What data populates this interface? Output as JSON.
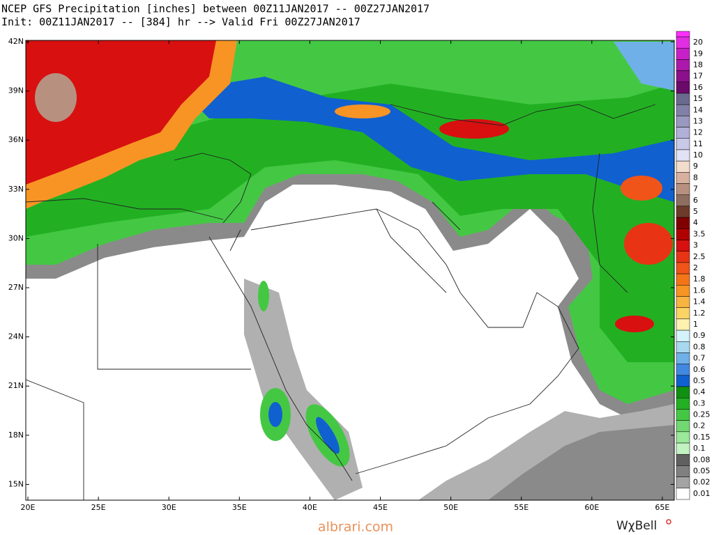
{
  "header": {
    "line1": "NCEP GFS Precipitation [inches] between 00Z11JAN2017 -- 00Z27JAN2017",
    "line2": "Init: 00Z11JAN2017 -- [384] hr --> Valid Fri 00Z27JAN2017"
  },
  "map": {
    "lat_labels": [
      "42N",
      "39N",
      "36N",
      "33N",
      "30N",
      "27N",
      "24N",
      "21N",
      "18N",
      "15N"
    ],
    "lon_labels": [
      "20E",
      "25E",
      "30E",
      "35E",
      "40E",
      "45E",
      "50E",
      "55E",
      "60E",
      "65E"
    ]
  },
  "colorbar": {
    "top_color": "#ff30ff",
    "levels": [
      {
        "label": "20",
        "color": "#e22ee2"
      },
      {
        "label": "19",
        "color": "#c820c8"
      },
      {
        "label": "18",
        "color": "#ac18ac"
      },
      {
        "label": "17",
        "color": "#8c108c"
      },
      {
        "label": "16",
        "color": "#6c0a6c"
      },
      {
        "label": "15",
        "color": "#6a6a8e"
      },
      {
        "label": "14",
        "color": "#8080a8"
      },
      {
        "label": "13",
        "color": "#9898c0"
      },
      {
        "label": "12",
        "color": "#b0b0d8"
      },
      {
        "label": "11",
        "color": "#c8c8e8"
      },
      {
        "label": "10",
        "color": "#e2e2f6"
      },
      {
        "label": "9",
        "color": "#f2dccc"
      },
      {
        "label": "8",
        "color": "#d8b0a0"
      },
      {
        "label": "7",
        "color": "#b89080"
      },
      {
        "label": "6",
        "color": "#8e6e60"
      },
      {
        "label": "5",
        "color": "#6e3a2a"
      },
      {
        "label": "4",
        "color": "#800000"
      },
      {
        "label": "3.5",
        "color": "#b00000"
      },
      {
        "label": "3",
        "color": "#d81010"
      },
      {
        "label": "2.5",
        "color": "#e83414"
      },
      {
        "label": "2",
        "color": "#f05418"
      },
      {
        "label": "1.8",
        "color": "#f47418"
      },
      {
        "label": "1.6",
        "color": "#f89424"
      },
      {
        "label": "1.4",
        "color": "#f8b440"
      },
      {
        "label": "1.2",
        "color": "#fad464"
      },
      {
        "label": "1",
        "color": "#fff2b0"
      },
      {
        "label": "0.9",
        "color": "#d4f2fa"
      },
      {
        "label": "0.8",
        "color": "#a8d8f0"
      },
      {
        "label": "0.7",
        "color": "#70b0e8"
      },
      {
        "label": "0.6",
        "color": "#4088e0"
      },
      {
        "label": "0.5",
        "color": "#1060d0"
      },
      {
        "label": "0.4",
        "color": "#109010"
      },
      {
        "label": "0.3",
        "color": "#22b022"
      },
      {
        "label": "0.25",
        "color": "#44c844"
      },
      {
        "label": "0.2",
        "color": "#72d872"
      },
      {
        "label": "0.15",
        "color": "#9ae89a"
      },
      {
        "label": "0.1",
        "color": "#c2f2c2"
      },
      {
        "label": "0.08",
        "color": "#606060"
      },
      {
        "label": "0.05",
        "color": "#808080"
      },
      {
        "label": "0.02",
        "color": "#a4a4a4"
      },
      {
        "label": "0.01",
        "color": "#ffffff"
      }
    ]
  },
  "footer": {
    "watermark": "albrari.com",
    "brand": "WχBell"
  }
}
